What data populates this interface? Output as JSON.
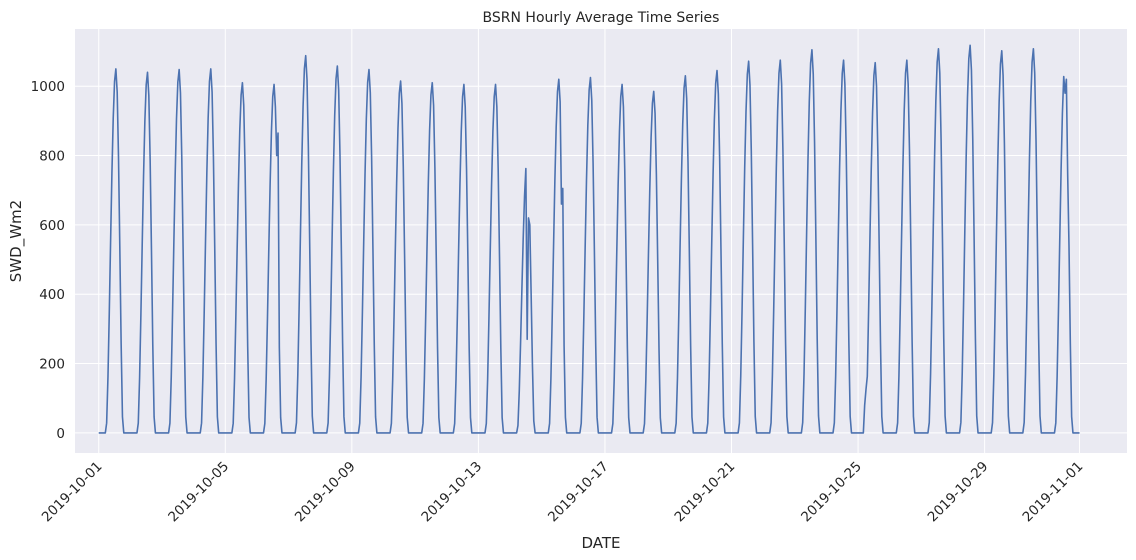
{
  "chart_data": {
    "type": "line",
    "title": "BSRN Hourly Average Time Series",
    "xlabel": "DATE",
    "ylabel": "SWD_Wm2",
    "ylim": [
      -58,
      1165
    ],
    "xlim": [
      "2019-09-30T06:00",
      "2019-11-02T12:00"
    ],
    "grid": true,
    "y_ticks": [
      0,
      200,
      400,
      600,
      800,
      1000
    ],
    "x_ticks": [
      "2019-10-01",
      "2019-10-05",
      "2019-10-09",
      "2019-10-13",
      "2019-10-17",
      "2019-10-21",
      "2019-10-25",
      "2019-10-29",
      "2019-11-01"
    ],
    "series_color": "#4c72b0",
    "background_color": "#eaeaf2",
    "series": [
      {
        "x_start": "2019-10-01T00:00",
        "x_end": "2019-11-01T00:00",
        "interval": "hourly",
        "daily_peaks": [
          {
            "date": "2019-10-01",
            "peak": 1050
          },
          {
            "date": "2019-10-02",
            "peak": 1040
          },
          {
            "date": "2019-10-03",
            "peak": 1048
          },
          {
            "date": "2019-10-04",
            "peak": 1050
          },
          {
            "date": "2019-10-05",
            "peak": 1010
          },
          {
            "date": "2019-10-06",
            "peak": 1005,
            "anomalies": [
              [
                15,
                800
              ],
              [
                16,
                865
              ]
            ]
          },
          {
            "date": "2019-10-07",
            "peak": 1088
          },
          {
            "date": "2019-10-08",
            "peak": 1058
          },
          {
            "date": "2019-10-09",
            "peak": 1048
          },
          {
            "date": "2019-10-10",
            "peak": 1015
          },
          {
            "date": "2019-10-11",
            "peak": 1010
          },
          {
            "date": "2019-10-12",
            "peak": 1005
          },
          {
            "date": "2019-10-13",
            "peak": 1005
          },
          {
            "date": "2019-10-14",
            "peak": 790,
            "anomalies": [
              [
                13,
                270
              ],
              [
                14,
                620
              ],
              [
                15,
                600
              ]
            ]
          },
          {
            "date": "2019-10-15",
            "peak": 1020,
            "anomalies": [
              [
                15,
                660
              ],
              [
                16,
                705
              ]
            ]
          },
          {
            "date": "2019-10-16",
            "peak": 1025
          },
          {
            "date": "2019-10-17",
            "peak": 1005
          },
          {
            "date": "2019-10-18",
            "peak": 985
          },
          {
            "date": "2019-10-19",
            "peak": 1030
          },
          {
            "date": "2019-10-20",
            "peak": 1045
          },
          {
            "date": "2019-10-21",
            "peak": 1072
          },
          {
            "date": "2019-10-22",
            "peak": 1075
          },
          {
            "date": "2019-10-23",
            "peak": 1105
          },
          {
            "date": "2019-10-24",
            "peak": 1075
          },
          {
            "date": "2019-10-25",
            "peak": 1068,
            "anomalies": [
              [
                5,
                80
              ],
              [
                6,
                125
              ]
            ]
          },
          {
            "date": "2019-10-26",
            "peak": 1075
          },
          {
            "date": "2019-10-27",
            "peak": 1108
          },
          {
            "date": "2019-10-28",
            "peak": 1118
          },
          {
            "date": "2019-10-29",
            "peak": 1102
          },
          {
            "date": "2019-10-30",
            "peak": 1108
          },
          {
            "date": "2019-10-31",
            "peak": 1065,
            "anomalies": [
              [
                13,
                980
              ],
              [
                14,
                1020
              ],
              [
                15,
                745
              ]
            ]
          }
        ]
      }
    ]
  }
}
